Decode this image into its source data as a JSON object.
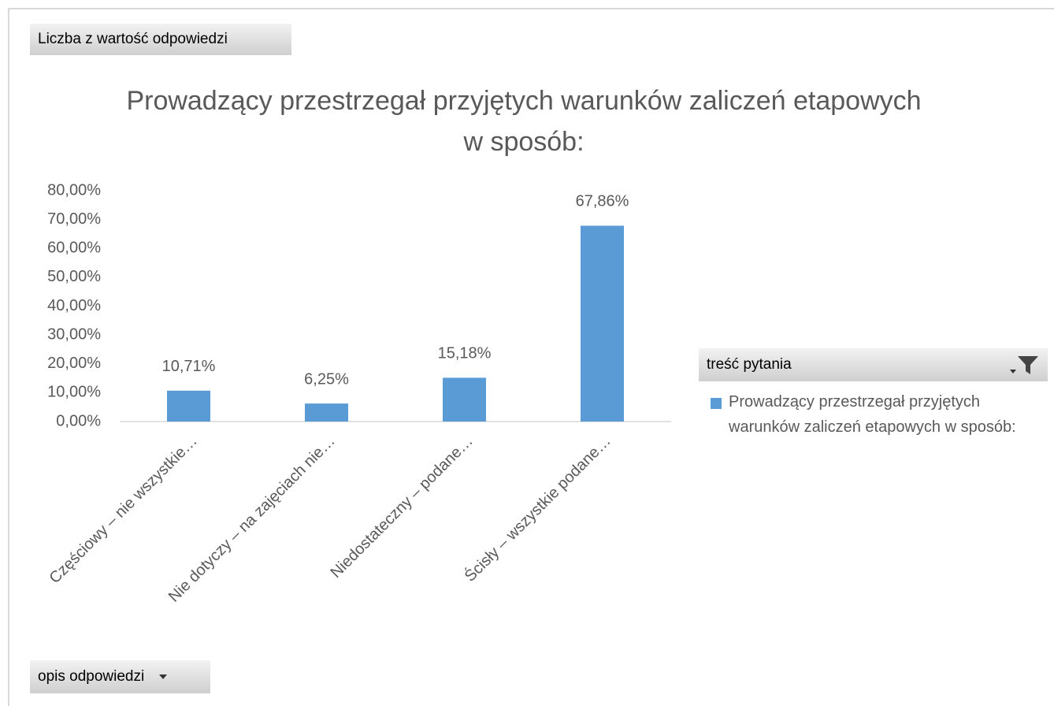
{
  "pivot": {
    "values_button": "Liczba z wartość odpowiedzi",
    "axis_button": "opis odpowiedzi",
    "legend_button": "treść pytania"
  },
  "chart_data": {
    "type": "bar",
    "title": "Prowadzący przestrzegał przyjętych warunków zaliczeń etapowych w sposób:",
    "categories": [
      "Częściowy – nie wszystkie…",
      "Nie dotyczy – na zajęciach nie…",
      "Niedostateczny – podane…",
      "Ścisły – wszystkie podane…"
    ],
    "series": [
      {
        "name": "Prowadzący przestrzegał przyjętych warunków zaliczeń etapowych w sposób:",
        "color": "#5b9bd5",
        "values": [
          10.71,
          6.25,
          15.18,
          67.86
        ],
        "value_labels": [
          "10,71%",
          "6,25%",
          "15,18%",
          "67,86%"
        ]
      }
    ],
    "ylim": [
      0,
      80
    ],
    "yticks": [
      {
        "value": 0,
        "label": "0,00%"
      },
      {
        "value": 10,
        "label": "10,00%"
      },
      {
        "value": 20,
        "label": "20,00%"
      },
      {
        "value": 30,
        "label": "30,00%"
      },
      {
        "value": 40,
        "label": "40,00%"
      },
      {
        "value": 50,
        "label": "50,00%"
      },
      {
        "value": 60,
        "label": "60,00%"
      },
      {
        "value": 70,
        "label": "70,00%"
      },
      {
        "value": 80,
        "label": "80,00%"
      }
    ],
    "grid": false,
    "legend": "right"
  }
}
